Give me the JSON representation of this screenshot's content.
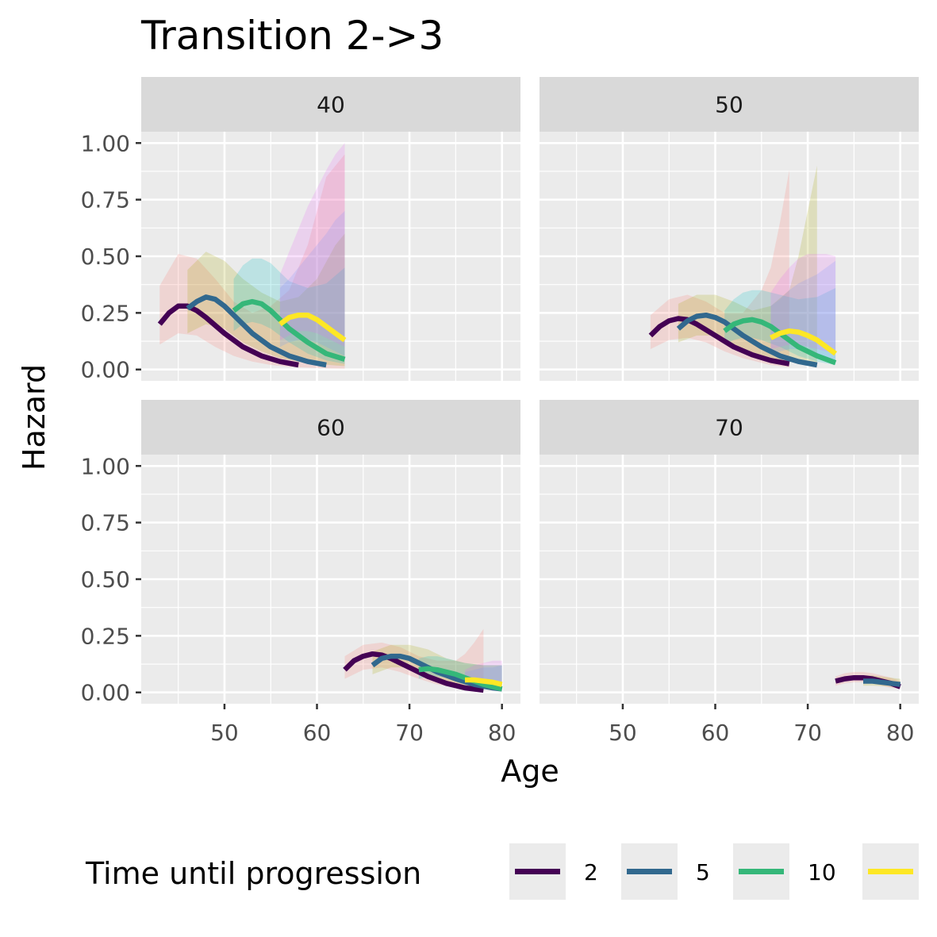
{
  "chart_data": {
    "type": "line",
    "title": "Transition 2->3",
    "xlabel": "Age",
    "ylabel": "Hazard",
    "xlim": [
      41,
      82
    ],
    "ylim": [
      -0.05,
      1.05
    ],
    "x_ticks": [
      50,
      60,
      70,
      80
    ],
    "y_ticks": [
      0,
      0.25,
      0.5,
      0.75,
      1.0
    ],
    "y_tick_labels": [
      "0.00",
      "0.25",
      "0.50",
      "0.75",
      "1.00"
    ],
    "x_tick_labels": [
      "50",
      "60",
      "70",
      "80"
    ],
    "grid": true,
    "legend": {
      "title": "Time until progression",
      "position": "bottom",
      "entries": [
        {
          "label": "2",
          "color": "#440154"
        },
        {
          "label": "5",
          "color": "#31688e"
        },
        {
          "label": "10",
          "color": "#35b779"
        },
        {
          "label": "",
          "color": "#fde725"
        }
      ]
    },
    "band_colors": [
      "#f8766d",
      "#a3a500",
      "#00bfc4",
      "#619cff",
      "#e76bf3"
    ],
    "panels": [
      {
        "label": "40",
        "series": [
          {
            "color": "#440154",
            "x": [
              43,
              44,
              45,
              46,
              47,
              48,
              50,
              52,
              54,
              56,
              58
            ],
            "y": [
              0.2,
              0.25,
              0.28,
              0.28,
              0.26,
              0.23,
              0.16,
              0.1,
              0.06,
              0.035,
              0.02
            ]
          },
          {
            "color": "#31688e",
            "x": [
              46,
              47,
              48,
              49,
              50,
              51,
              53,
              55,
              57,
              59,
              61
            ],
            "y": [
              0.27,
              0.3,
              0.32,
              0.31,
              0.28,
              0.24,
              0.16,
              0.1,
              0.06,
              0.035,
              0.02
            ]
          },
          {
            "color": "#35b779",
            "x": [
              51,
              52,
              53,
              54,
              55,
              56,
              57,
              59,
              61,
              63
            ],
            "y": [
              0.26,
              0.29,
              0.3,
              0.29,
              0.26,
              0.22,
              0.18,
              0.12,
              0.07,
              0.045
            ]
          },
          {
            "color": "#fde725",
            "x": [
              56,
              57,
              58,
              59,
              60,
              61,
              62,
              63
            ],
            "y": [
              0.2,
              0.23,
              0.24,
              0.24,
              0.22,
              0.19,
              0.16,
              0.13
            ]
          }
        ],
        "bands": [
          {
            "color": "#f8766d",
            "x": [
              43,
              45,
              47,
              49,
              51,
              53,
              55,
              57,
              59,
              61,
              63
            ],
            "lower": [
              0.11,
              0.16,
              0.15,
              0.1,
              0.06,
              0.035,
              0.02,
              0.012,
              0.008,
              0.005,
              0.004
            ],
            "upper": [
              0.37,
              0.51,
              0.49,
              0.4,
              0.3,
              0.25,
              0.28,
              0.35,
              0.55,
              0.85,
              0.95
            ]
          },
          {
            "color": "#a3a500",
            "x": [
              46,
              48,
              50,
              52,
              54,
              56,
              58,
              60,
              62,
              63
            ],
            "lower": [
              0.16,
              0.2,
              0.18,
              0.12,
              0.08,
              0.05,
              0.035,
              0.025,
              0.018,
              0.015
            ],
            "upper": [
              0.44,
              0.52,
              0.48,
              0.4,
              0.34,
              0.3,
              0.32,
              0.4,
              0.55,
              0.6
            ]
          },
          {
            "color": "#00bfc4",
            "x": [
              51,
              52,
              53,
              54,
              55,
              57,
              59,
              61,
              63
            ],
            "lower": [
              0.17,
              0.2,
              0.21,
              0.2,
              0.18,
              0.12,
              0.07,
              0.04,
              0.025
            ],
            "upper": [
              0.4,
              0.46,
              0.49,
              0.49,
              0.47,
              0.39,
              0.36,
              0.38,
              0.45
            ]
          },
          {
            "color": "#619cff",
            "x": [
              56,
              57,
              58,
              59,
              60,
              61,
              62,
              63
            ],
            "lower": [
              0.1,
              0.12,
              0.13,
              0.13,
              0.12,
              0.1,
              0.08,
              0.06
            ],
            "upper": [
              0.36,
              0.4,
              0.45,
              0.5,
              0.55,
              0.6,
              0.66,
              0.7
            ]
          },
          {
            "color": "#e76bf3",
            "x": [
              56,
              57,
              58,
              59,
              60,
              61,
              62,
              63
            ],
            "lower": [
              0.13,
              0.15,
              0.17,
              0.17,
              0.16,
              0.14,
              0.12,
              0.1
            ],
            "upper": [
              0.42,
              0.52,
              0.62,
              0.72,
              0.8,
              0.88,
              0.95,
              1.0
            ]
          }
        ]
      },
      {
        "label": "50",
        "series": [
          {
            "color": "#440154",
            "x": [
              53,
              54,
              55,
              56,
              57,
              58,
              60,
              62,
              64,
              66,
              68
            ],
            "y": [
              0.15,
              0.19,
              0.215,
              0.225,
              0.22,
              0.2,
              0.15,
              0.1,
              0.065,
              0.04,
              0.025
            ]
          },
          {
            "color": "#31688e",
            "x": [
              56,
              57,
              58,
              59,
              60,
              61,
              63,
              65,
              67,
              69,
              71
            ],
            "y": [
              0.18,
              0.215,
              0.235,
              0.24,
              0.23,
              0.21,
              0.15,
              0.1,
              0.06,
              0.035,
              0.02
            ]
          },
          {
            "color": "#35b779",
            "x": [
              61,
              62,
              63,
              64,
              65,
              66,
              67,
              69,
              71,
              73
            ],
            "y": [
              0.17,
              0.2,
              0.215,
              0.22,
              0.21,
              0.19,
              0.16,
              0.1,
              0.06,
              0.03
            ]
          },
          {
            "color": "#fde725",
            "x": [
              66,
              67,
              68,
              69,
              70,
              71,
              72,
              73
            ],
            "y": [
              0.14,
              0.16,
              0.17,
              0.165,
              0.15,
              0.13,
              0.1,
              0.07
            ]
          }
        ],
        "bands": [
          {
            "color": "#f8766d",
            "x": [
              53,
              55,
              57,
              59,
              61,
              63,
              65,
              66,
              67,
              68
            ],
            "lower": [
              0.09,
              0.13,
              0.14,
              0.12,
              0.08,
              0.05,
              0.03,
              0.02,
              0.015,
              0.01
            ],
            "upper": [
              0.24,
              0.31,
              0.33,
              0.3,
              0.25,
              0.25,
              0.35,
              0.45,
              0.65,
              0.88
            ]
          },
          {
            "color": "#a3a500",
            "x": [
              56,
              58,
              60,
              62,
              64,
              66,
              68,
              69,
              70,
              71
            ],
            "lower": [
              0.12,
              0.15,
              0.15,
              0.11,
              0.07,
              0.05,
              0.035,
              0.03,
              0.02,
              0.015
            ],
            "upper": [
              0.29,
              0.33,
              0.33,
              0.3,
              0.26,
              0.28,
              0.35,
              0.5,
              0.7,
              0.9
            ]
          },
          {
            "color": "#00bfc4",
            "x": [
              61,
              62,
              63,
              64,
              65,
              67,
              69,
              71,
              73
            ],
            "lower": [
              0.11,
              0.13,
              0.14,
              0.14,
              0.13,
              0.1,
              0.06,
              0.035,
              0.02
            ],
            "upper": [
              0.26,
              0.31,
              0.34,
              0.35,
              0.35,
              0.33,
              0.31,
              0.32,
              0.36
            ]
          },
          {
            "color": "#619cff",
            "x": [
              66,
              67,
              68,
              69,
              70,
              71,
              72,
              73
            ],
            "lower": [
              0.07,
              0.08,
              0.09,
              0.09,
              0.08,
              0.07,
              0.05,
              0.04
            ],
            "upper": [
              0.28,
              0.31,
              0.35,
              0.38,
              0.4,
              0.42,
              0.45,
              0.48
            ]
          },
          {
            "color": "#e76bf3",
            "x": [
              66,
              67,
              68,
              69,
              70,
              71,
              72,
              73
            ],
            "lower": [
              0.09,
              0.1,
              0.11,
              0.11,
              0.1,
              0.09,
              0.08,
              0.07
            ],
            "upper": [
              0.34,
              0.4,
              0.45,
              0.49,
              0.51,
              0.51,
              0.51,
              0.5
            ]
          }
        ]
      },
      {
        "label": "60",
        "series": [
          {
            "color": "#440154",
            "x": [
              63,
              64,
              65,
              66,
              67,
              68,
              70,
              72,
              74,
              76,
              78
            ],
            "y": [
              0.1,
              0.14,
              0.16,
              0.17,
              0.165,
              0.15,
              0.11,
              0.07,
              0.04,
              0.02,
              0.01
            ]
          },
          {
            "color": "#31688e",
            "x": [
              66,
              67,
              68,
              69,
              70,
              71,
              73,
              75,
              77,
              79,
              80
            ],
            "y": [
              0.12,
              0.15,
              0.16,
              0.16,
              0.15,
              0.13,
              0.09,
              0.06,
              0.035,
              0.02,
              0.015
            ]
          },
          {
            "color": "#35b779",
            "x": [
              71,
              72,
              73,
              74,
              75,
              76,
              77,
              78,
              79,
              80
            ],
            "y": [
              0.1,
              0.105,
              0.1,
              0.09,
              0.08,
              0.065,
              0.05,
              0.035,
              0.025,
              0.015
            ]
          },
          {
            "color": "#fde725",
            "x": [
              76,
              77,
              78,
              79,
              80
            ],
            "y": [
              0.055,
              0.055,
              0.05,
              0.045,
              0.035
            ]
          }
        ],
        "bands": [
          {
            "color": "#f8766d",
            "x": [
              63,
              65,
              67,
              69,
              71,
              73,
              75,
              76,
              77,
              78
            ],
            "lower": [
              0.06,
              0.1,
              0.11,
              0.09,
              0.06,
              0.035,
              0.02,
              0.015,
              0.01,
              0.008
            ],
            "upper": [
              0.16,
              0.21,
              0.22,
              0.2,
              0.16,
              0.14,
              0.14,
              0.17,
              0.22,
              0.28
            ]
          },
          {
            "color": "#a3a500",
            "x": [
              66,
              68,
              70,
              72,
              74,
              76,
              78,
              80
            ],
            "lower": [
              0.08,
              0.11,
              0.11,
              0.08,
              0.05,
              0.03,
              0.02,
              0.012
            ],
            "upper": [
              0.18,
              0.21,
              0.21,
              0.19,
              0.15,
              0.13,
              0.12,
              0.12
            ]
          },
          {
            "color": "#00bfc4",
            "x": [
              71,
              72,
              73,
              74,
              75,
              76,
              78,
              80
            ],
            "lower": [
              0.06,
              0.07,
              0.07,
              0.065,
              0.055,
              0.045,
              0.025,
              0.012
            ],
            "upper": [
              0.15,
              0.16,
              0.16,
              0.15,
              0.14,
              0.13,
              0.12,
              0.12
            ]
          },
          {
            "color": "#619cff",
            "x": [
              76,
              77,
              78,
              79,
              80
            ],
            "lower": [
              0.03,
              0.032,
              0.03,
              0.025,
              0.02
            ],
            "upper": [
              0.09,
              0.1,
              0.11,
              0.11,
              0.12
            ]
          },
          {
            "color": "#e76bf3",
            "x": [
              76,
              77,
              78,
              79,
              80
            ],
            "lower": [
              0.035,
              0.035,
              0.033,
              0.03,
              0.025
            ],
            "upper": [
              0.1,
              0.12,
              0.13,
              0.14,
              0.14
            ]
          }
        ]
      },
      {
        "label": "70",
        "series": [
          {
            "color": "#440154",
            "x": [
              73,
              74,
              75,
              76,
              77,
              78,
              79,
              80
            ],
            "y": [
              0.05,
              0.06,
              0.065,
              0.065,
              0.06,
              0.05,
              0.04,
              0.025
            ]
          },
          {
            "color": "#31688e",
            "x": [
              76,
              77,
              78,
              79,
              80
            ],
            "y": [
              0.05,
              0.05,
              0.045,
              0.04,
              0.035
            ]
          }
        ],
        "bands": [
          {
            "color": "#f8766d",
            "x": [
              73,
              74,
              75,
              76,
              77,
              78,
              79,
              80
            ],
            "lower": [
              0.03,
              0.04,
              0.045,
              0.045,
              0.04,
              0.03,
              0.02,
              0.015
            ],
            "upper": [
              0.07,
              0.085,
              0.09,
              0.09,
              0.085,
              0.075,
              0.065,
              0.05
            ]
          },
          {
            "color": "#a3a500",
            "x": [
              76,
              77,
              78,
              79,
              80
            ],
            "lower": [
              0.03,
              0.03,
              0.028,
              0.025,
              0.02
            ],
            "upper": [
              0.075,
              0.075,
              0.07,
              0.065,
              0.06
            ]
          }
        ]
      }
    ]
  }
}
